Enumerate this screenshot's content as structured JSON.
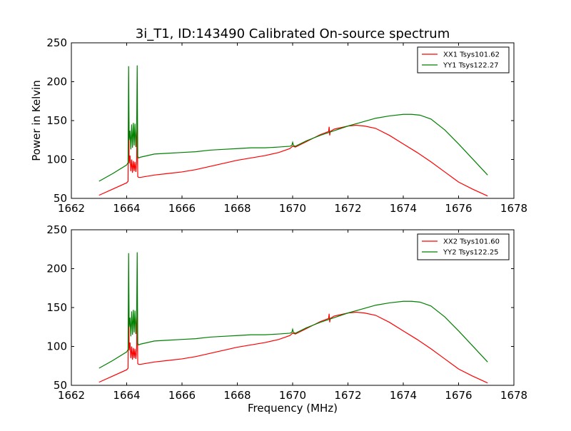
{
  "chart_data": [
    {
      "type": "line",
      "title": "3i_T1, ID:143490 Calibrated On-source spectrum",
      "xlabel": "",
      "ylabel": "Power in Kelvin",
      "xlim": [
        1662,
        1678
      ],
      "ylim": [
        50,
        250
      ],
      "xticks": [
        "1662",
        "1664",
        "1666",
        "1668",
        "1670",
        "1672",
        "1674",
        "1676",
        "1678"
      ],
      "yticks": [
        "50",
        "100",
        "150",
        "200",
        "250"
      ],
      "legend_position": "top-right",
      "series": [
        {
          "name": "XX1 Tsys101.62",
          "color": "#ff0000",
          "x": [
            1663.0,
            1663.5,
            1664.0,
            1664.05,
            1664.07,
            1664.09,
            1664.12,
            1664.15,
            1664.18,
            1664.21,
            1664.24,
            1664.27,
            1664.3,
            1664.33,
            1664.36,
            1664.38,
            1664.4,
            1664.43,
            1664.5,
            1665.0,
            1665.5,
            1666.0,
            1666.5,
            1667.0,
            1667.5,
            1668.0,
            1668.5,
            1669.0,
            1669.5,
            1669.9,
            1670.0,
            1670.1,
            1670.5,
            1671.0,
            1671.3,
            1671.32,
            1671.34,
            1671.36,
            1671.5,
            1672.0,
            1672.3,
            1672.6,
            1673.0,
            1673.5,
            1674.0,
            1674.5,
            1675.0,
            1675.5,
            1676.0,
            1676.5,
            1677.05
          ],
          "values": [
            54,
            62,
            70,
            72,
            170,
            95,
            105,
            85,
            100,
            83,
            98,
            85,
            97,
            84,
            95,
            170,
            78,
            77,
            77,
            80,
            82,
            84,
            87,
            91,
            95,
            99,
            102,
            105,
            109,
            114,
            117,
            116,
            123,
            132,
            136,
            142,
            131,
            136,
            139,
            143,
            144,
            143,
            140,
            131,
            120,
            109,
            97,
            84,
            71,
            62,
            53
          ]
        },
        {
          "name": "YY1 Tsys122.27",
          "color": "#008000",
          "x": [
            1663.0,
            1663.5,
            1664.0,
            1664.05,
            1664.07,
            1664.09,
            1664.12,
            1664.15,
            1664.18,
            1664.21,
            1664.24,
            1664.27,
            1664.3,
            1664.33,
            1664.36,
            1664.38,
            1664.4,
            1664.43,
            1664.5,
            1665.0,
            1665.5,
            1666.0,
            1666.5,
            1667.0,
            1667.5,
            1668.0,
            1668.5,
            1669.0,
            1669.5,
            1669.9,
            1669.97,
            1670.0,
            1670.03,
            1670.1,
            1670.5,
            1671.0,
            1671.5,
            1672.0,
            1672.5,
            1673.0,
            1673.5,
            1674.0,
            1674.3,
            1674.6,
            1675.0,
            1675.5,
            1676.0,
            1676.5,
            1677.05
          ],
          "values": [
            72,
            82,
            93,
            96,
            220,
            125,
            137,
            113,
            145,
            115,
            147,
            118,
            146,
            116,
            140,
            221,
            104,
            102,
            103,
            107,
            108,
            109,
            110,
            112,
            113,
            114,
            115,
            115,
            116,
            117,
            118,
            122,
            118,
            117,
            124,
            131,
            137,
            143,
            148,
            153,
            156,
            158,
            158,
            157,
            152,
            138,
            120,
            101,
            80
          ]
        }
      ]
    },
    {
      "type": "line",
      "title": "",
      "xlabel": "Frequency (MHz)",
      "ylabel": "",
      "xlim": [
        1662,
        1678
      ],
      "ylim": [
        50,
        250
      ],
      "xticks": [
        "1662",
        "1664",
        "1666",
        "1668",
        "1670",
        "1672",
        "1674",
        "1676",
        "1678"
      ],
      "yticks": [
        "50",
        "100",
        "150",
        "200",
        "250"
      ],
      "legend_position": "top-right",
      "series": [
        {
          "name": "XX2 Tsys101.60",
          "color": "#ff0000",
          "x": [
            1663.0,
            1663.5,
            1664.0,
            1664.05,
            1664.07,
            1664.09,
            1664.12,
            1664.15,
            1664.18,
            1664.21,
            1664.24,
            1664.27,
            1664.3,
            1664.33,
            1664.36,
            1664.38,
            1664.4,
            1664.43,
            1664.5,
            1665.0,
            1665.5,
            1666.0,
            1666.5,
            1667.0,
            1667.5,
            1668.0,
            1668.5,
            1669.0,
            1669.5,
            1669.9,
            1670.0,
            1670.1,
            1670.5,
            1671.0,
            1671.3,
            1671.32,
            1671.34,
            1671.36,
            1671.5,
            1672.0,
            1672.3,
            1672.6,
            1673.0,
            1673.5,
            1674.0,
            1674.5,
            1675.0,
            1675.5,
            1676.0,
            1676.5,
            1677.05
          ],
          "values": [
            54,
            62,
            70,
            72,
            170,
            95,
            105,
            85,
            100,
            83,
            98,
            85,
            97,
            84,
            95,
            170,
            78,
            77,
            77,
            80,
            82,
            84,
            87,
            91,
            95,
            99,
            102,
            105,
            109,
            114,
            117,
            116,
            123,
            132,
            136,
            142,
            131,
            136,
            139,
            143,
            144,
            143,
            140,
            131,
            120,
            109,
            97,
            84,
            71,
            62,
            53
          ]
        },
        {
          "name": "YY2 Tsys122.25",
          "color": "#008000",
          "x": [
            1663.0,
            1663.5,
            1664.0,
            1664.05,
            1664.07,
            1664.09,
            1664.12,
            1664.15,
            1664.18,
            1664.21,
            1664.24,
            1664.27,
            1664.3,
            1664.33,
            1664.36,
            1664.38,
            1664.4,
            1664.43,
            1664.5,
            1665.0,
            1665.5,
            1666.0,
            1666.5,
            1667.0,
            1667.5,
            1668.0,
            1668.5,
            1669.0,
            1669.5,
            1669.9,
            1669.97,
            1670.0,
            1670.03,
            1670.1,
            1670.5,
            1671.0,
            1671.5,
            1672.0,
            1672.5,
            1673.0,
            1673.5,
            1674.0,
            1674.3,
            1674.6,
            1675.0,
            1675.5,
            1676.0,
            1676.5,
            1677.05
          ],
          "values": [
            72,
            82,
            93,
            96,
            220,
            125,
            137,
            113,
            145,
            115,
            147,
            118,
            146,
            116,
            140,
            221,
            104,
            102,
            103,
            107,
            108,
            109,
            110,
            112,
            113,
            114,
            115,
            115,
            116,
            117,
            118,
            122,
            118,
            117,
            124,
            131,
            137,
            143,
            148,
            153,
            156,
            158,
            158,
            157,
            152,
            138,
            120,
            101,
            80
          ]
        }
      ]
    }
  ]
}
